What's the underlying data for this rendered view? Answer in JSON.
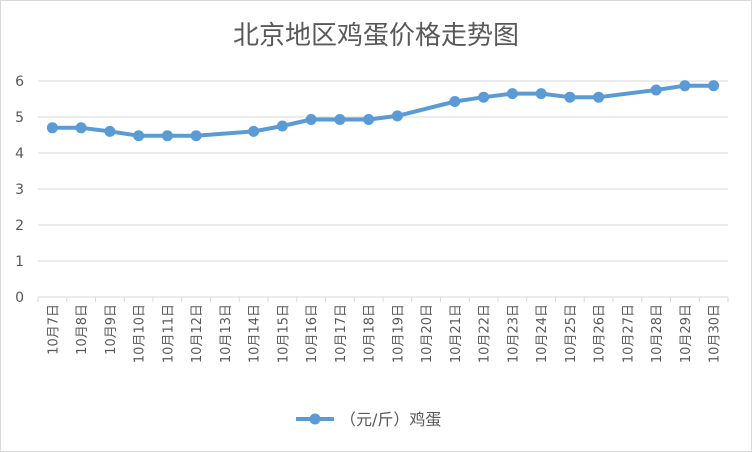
{
  "chart_data": {
    "type": "line",
    "title": "北京地区鸡蛋价格走势图",
    "xlabel": "",
    "ylabel": "",
    "ylim": [
      0,
      6
    ],
    "yticks": [
      0,
      1,
      2,
      3,
      4,
      5,
      6
    ],
    "grid": true,
    "legend_position": "bottom",
    "colors": {
      "series": "#5b9bd5",
      "grid": "#d9d9d9",
      "text": "#595959"
    },
    "categories": [
      "10月7日",
      "10月8日",
      "10月9日",
      "10月10日",
      "10月11日",
      "10月12日",
      "10月13日",
      "10月14日",
      "10月15日",
      "10月16日",
      "10月17日",
      "10月18日",
      "10月19日",
      "10月20日",
      "10月21日",
      "10月22日",
      "10月23日",
      "10月24日",
      "10月25日",
      "10月26日",
      "10月27日",
      "10月28日",
      "10月29日",
      "10月30日"
    ],
    "series": [
      {
        "name": "（元/斤）鸡蛋",
        "values": [
          4.7,
          4.7,
          4.6,
          4.48,
          4.48,
          4.48,
          null,
          4.6,
          4.75,
          4.93,
          4.93,
          4.93,
          5.03,
          null,
          5.43,
          5.55,
          5.65,
          5.65,
          5.55,
          5.55,
          null,
          5.75,
          5.87,
          5.87
        ]
      }
    ]
  }
}
